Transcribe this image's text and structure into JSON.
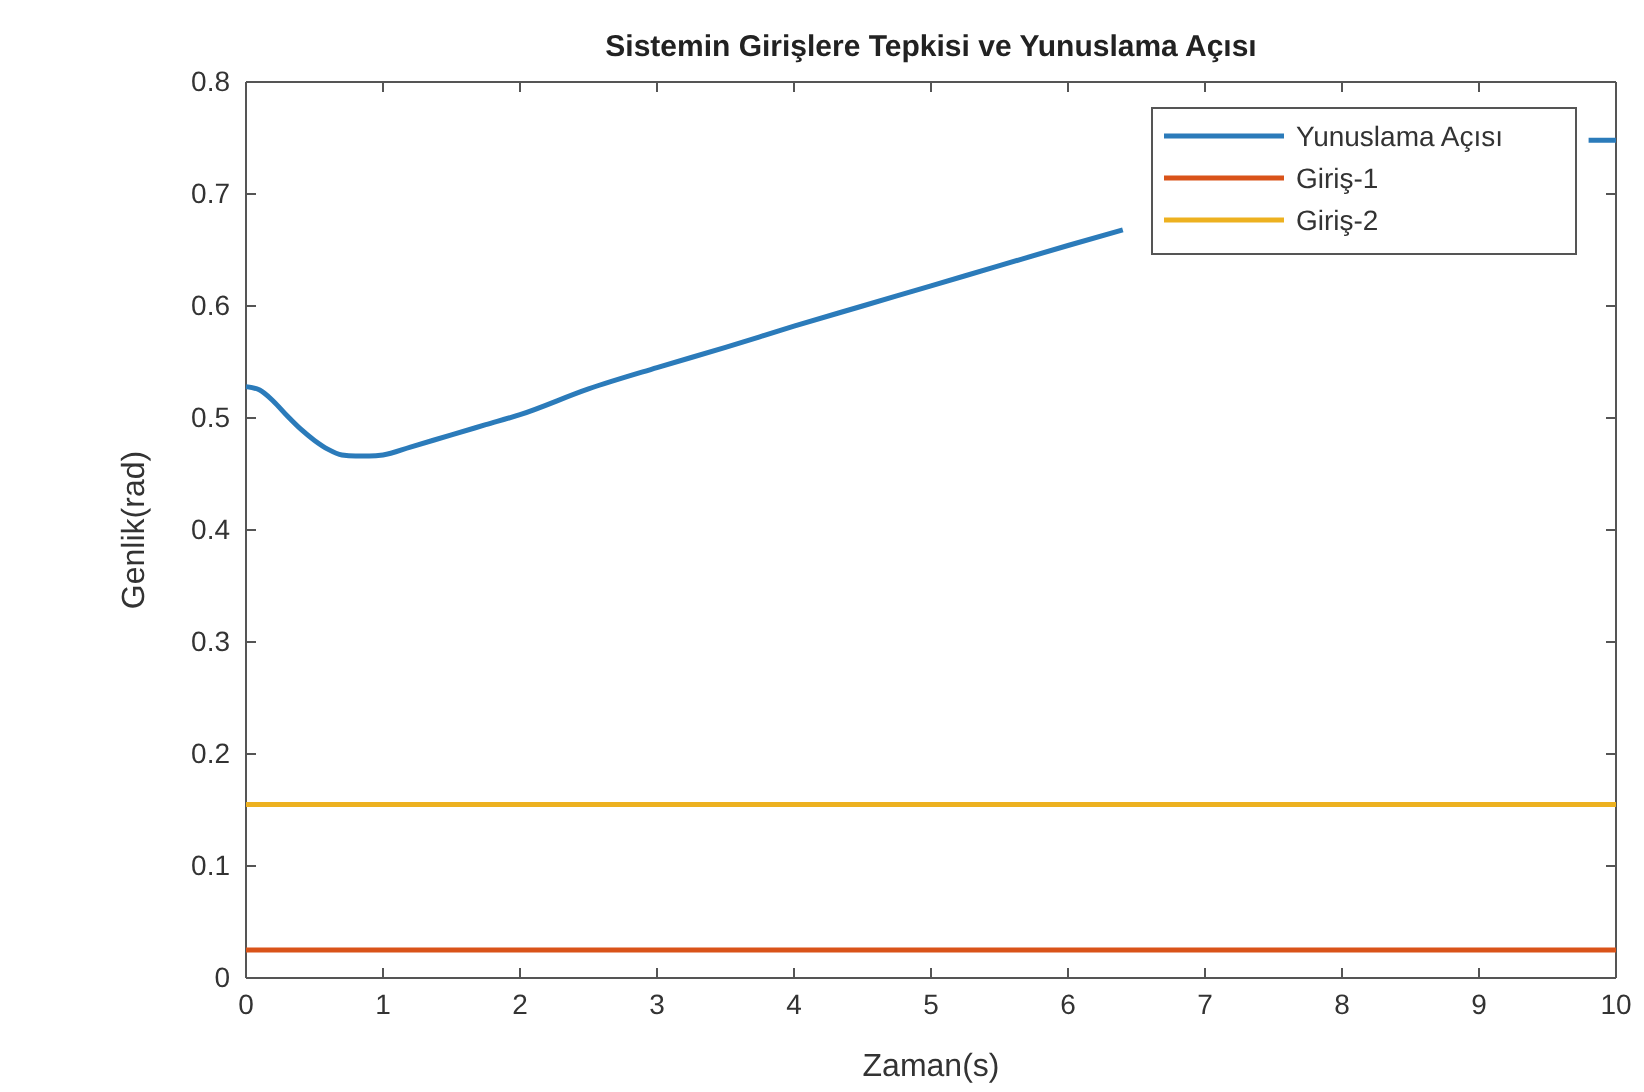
{
  "chart_data": {
    "type": "line",
    "title": "Sistemin Girişlere Tepkisi ve Yunuslama Açısı",
    "xlabel": "Zaman(s)",
    "ylabel": "Genlik(rad)",
    "xlim": [
      0,
      10
    ],
    "xticks": [
      0,
      1,
      2,
      3,
      4,
      5,
      6,
      7,
      8,
      9,
      10
    ],
    "ylim": [
      0,
      0.8
    ],
    "yticks": [
      0,
      0.1,
      0.2,
      0.3,
      0.4,
      0.5,
      0.6,
      0.7,
      0.8
    ],
    "grid": false,
    "legend": "top right",
    "line_style": "solid",
    "marker": "none",
    "series": [
      {
        "name": "Yunuslama Açısı",
        "color": "#2b7bba",
        "x": [
          0,
          0.1,
          0.2,
          0.3,
          0.4,
          0.5,
          0.6,
          0.7,
          0.8,
          0.9,
          1.0,
          1.2,
          1.5,
          1.75,
          2,
          2.5,
          3,
          3.5,
          4,
          4.5,
          5,
          5.5,
          6,
          6.4,
          7,
          9.8,
          10
        ],
        "values": [
          0.528,
          0.525,
          0.515,
          0.502,
          0.49,
          0.48,
          0.472,
          0.467,
          0.466,
          0.466,
          0.467,
          0.474,
          0.485,
          0.494,
          0.503,
          0.526,
          0.545,
          0.563,
          0.582,
          0.6,
          0.618,
          0.636,
          0.654,
          0.668,
          null,
          0.748,
          0.748
        ]
      },
      {
        "name": "Giriş-1",
        "color": "#d95319",
        "x": [
          0,
          10
        ],
        "values": [
          0.025,
          0.025
        ]
      },
      {
        "name": "Giriş-2",
        "color": "#edb120",
        "x": [
          0,
          10
        ],
        "values": [
          0.155,
          0.155
        ]
      }
    ]
  }
}
